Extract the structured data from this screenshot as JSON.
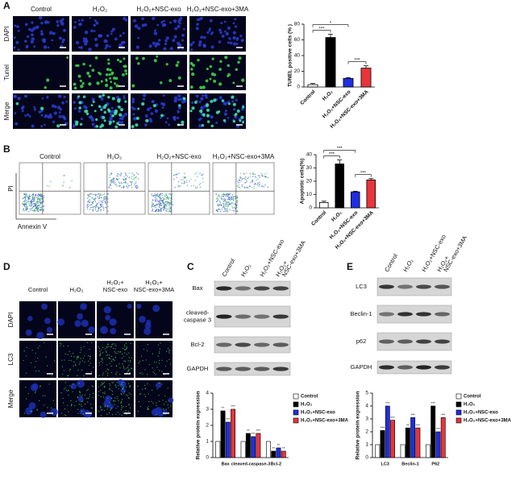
{
  "panels": {
    "A": {
      "label": "A",
      "columns": [
        [
          "Control"
        ],
        [
          "H₂O₂"
        ],
        [
          "H₂O₂+NSC-exo"
        ],
        [
          "H₂O₂+NSC-exo+3MA"
        ]
      ],
      "rows": [
        [
          "DAPI"
        ],
        [
          "Tunel"
        ],
        [
          "Merge"
        ]
      ]
    },
    "B": {
      "label": "B",
      "columns": [
        [
          "Control"
        ],
        [
          "H₂O₂"
        ],
        [
          "H₂O₂+NSC-exo"
        ],
        [
          "H₂O₂+NSC-exo+3MA"
        ]
      ],
      "y_axis": "PI",
      "x_axis": "Annexin V"
    },
    "C": {
      "label": "C",
      "columns": [
        [
          "Control"
        ],
        [
          "H₂O₂"
        ],
        [
          "H₂O₂+NSC-exo"
        ],
        [
          "H₂O₂+",
          "NSC-exo+3MA"
        ]
      ],
      "rows": [
        [
          "Bax"
        ],
        [
          "cleaved-",
          "caspase 3"
        ],
        [
          "Bcl-2"
        ],
        [
          "GAPDH"
        ]
      ]
    },
    "D": {
      "label": "D",
      "columns": [
        [
          "Control"
        ],
        [
          "H₂O₂"
        ],
        [
          "H₂O₂+",
          "NSC-exo"
        ],
        [
          "H₂O₂+",
          "NSC-exo+3MA"
        ]
      ],
      "rows": [
        [
          "DAPI"
        ],
        [
          "LC3"
        ],
        [
          "Merge"
        ]
      ]
    },
    "E": {
      "label": "E",
      "columns": [
        [
          "Control"
        ],
        [
          "H₂O₂"
        ],
        [
          "H₂O₂+NSC-exo"
        ],
        [
          "H₂O₂+",
          "NSC-exo+3MA"
        ]
      ],
      "rows": [
        [
          "LC3"
        ],
        [
          "Beclin-1"
        ],
        [
          "p62"
        ],
        [
          "GAPDH"
        ]
      ]
    }
  },
  "chart_data": [
    {
      "type": "bar",
      "y_label": "TUNEL positive cells (% )",
      "categories": [
        "Control",
        "H₂O₂",
        "H₂O₂+NSC-exo",
        "H₂O₂+NSC-exo+3MA"
      ],
      "values": [
        3,
        63,
        11,
        24
      ],
      "errors": [
        1.5,
        4,
        1,
        3
      ],
      "colors": [
        "#ffffff",
        "#000000",
        "#1f2ee0",
        "#e8343a"
      ],
      "ylim": [
        0,
        80
      ],
      "yticks": [
        0,
        20,
        40,
        60,
        80
      ],
      "comparisons": [
        {
          "pair": [
            "Control",
            "H₂O₂"
          ],
          "label": "***"
        },
        {
          "pair": [
            "H₂O₂+NSC-exo",
            "H₂O₂+NSC-exo+3MA"
          ],
          "label": "***"
        },
        {
          "pair": [
            "Control",
            "H₂O₂+NSC-exo"
          ],
          "label": "*"
        }
      ]
    },
    {
      "type": "bar",
      "y_label": "Apoptotic cells(%)",
      "categories": [
        "Control",
        "H₂O₂",
        "H₂O₂+NSC-exo",
        "H₂O₂+NSC-exo+3MA"
      ],
      "values": [
        4,
        33,
        12,
        21
      ],
      "errors": [
        1,
        3,
        0.5,
        1
      ],
      "colors": [
        "#ffffff",
        "#000000",
        "#1f2ee0",
        "#e8343a"
      ],
      "ylim": [
        0,
        40
      ],
      "yticks": [
        0,
        10,
        20,
        30,
        40
      ],
      "comparisons": [
        {
          "pair": [
            "Control",
            "H₂O₂"
          ],
          "label": "***"
        },
        {
          "pair": [
            "H₂O₂+NSC-exo",
            "H₂O₂+NSC-exo+3MA"
          ],
          "label": "***"
        },
        {
          "pair": [
            "Control",
            "H₂O₂+NSC-exo"
          ],
          "label": "***"
        }
      ]
    },
    {
      "type": "grouped_bar",
      "y_label": "Relative protein expression",
      "categories": [
        "Bax",
        "cleaved-caspase-3",
        "Bcl-2"
      ],
      "ylim": [
        0,
        4
      ],
      "yticks": [
        0,
        1,
        2,
        3,
        4
      ],
      "series": [
        {
          "name": "Control",
          "color": "#ffffff",
          "values": [
            1,
            1,
            1
          ]
        },
        {
          "name": "H₂O₂",
          "color": "#000000",
          "values": [
            2.9,
            1.5,
            0.4
          ],
          "significance": [
            "**",
            "**",
            "**"
          ]
        },
        {
          "name": "H₂O₂+NSC-exo",
          "color": "#1f2ee0",
          "values": [
            2.2,
            1.3,
            0.6
          ],
          "significance": [
            "***",
            "***",
            "**"
          ]
        },
        {
          "name": "H₂O₂+NSC-exo+3MA",
          "color": "#e8343a",
          "values": [
            3.0,
            1.5,
            0.4
          ],
          "significance": [
            "***",
            "***",
            "**"
          ]
        }
      ]
    },
    {
      "type": "grouped_bar",
      "y_label": "Relative protein expression",
      "categories": [
        "LC3",
        "Beclin-1",
        "P62"
      ],
      "ylim": [
        0,
        5
      ],
      "yticks": [
        0,
        1,
        2,
        3,
        4,
        5
      ],
      "series": [
        {
          "name": "Control",
          "color": "#ffffff",
          "values": [
            1,
            1,
            1
          ]
        },
        {
          "name": "H₂O₂",
          "color": "#000000",
          "values": [
            2.1,
            2.3,
            4.0
          ],
          "significance": [
            "***",
            "**",
            "***"
          ]
        },
        {
          "name": "H₂O₂+NSC-exo",
          "color": "#1f2ee0",
          "values": [
            4.0,
            3.1,
            2.0
          ],
          "significance": [
            "***",
            "***",
            "***"
          ]
        },
        {
          "name": "H₂O₂+NSC-exo+3MA",
          "color": "#e8343a",
          "values": [
            2.9,
            2.3,
            3.1
          ],
          "significance": [
            "***",
            "***",
            "***"
          ]
        }
      ]
    }
  ]
}
